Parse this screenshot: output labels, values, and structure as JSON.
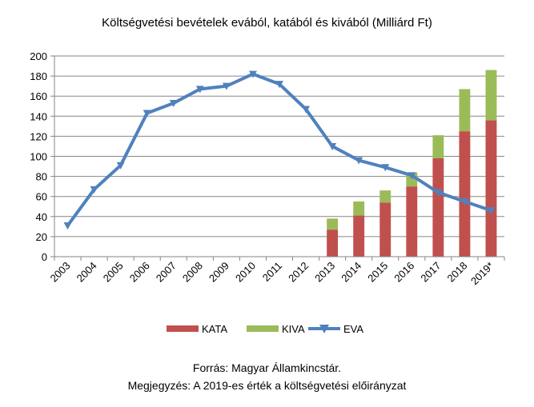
{
  "chart_data": {
    "type": "bar",
    "title": "Költségvetési bevételek evából, katából és kivából (Milliárd Ft)",
    "categories": [
      "2003",
      "2004",
      "2005",
      "2006",
      "2007",
      "2008",
      "2009",
      "2010",
      "2011",
      "2012",
      "2013",
      "2014",
      "2015",
      "2016",
      "2017",
      "2018",
      "2019*"
    ],
    "ylim": [
      0,
      200
    ],
    "yticks": [
      0,
      20,
      40,
      60,
      80,
      100,
      120,
      140,
      160,
      180,
      200
    ],
    "series": [
      {
        "name": "KATA",
        "kind": "stacked-bar",
        "color": "#c0504d",
        "values": [
          null,
          null,
          null,
          null,
          null,
          null,
          null,
          null,
          null,
          null,
          27,
          41,
          54,
          70,
          98,
          125,
          136
        ]
      },
      {
        "name": "KIVA",
        "kind": "stacked-bar",
        "color": "#9bbb59",
        "values": [
          null,
          null,
          null,
          null,
          null,
          null,
          null,
          null,
          null,
          null,
          11,
          14,
          12,
          14,
          23,
          42,
          50
        ]
      },
      {
        "name": "EVA",
        "kind": "line",
        "color": "#4f81bd",
        "values": [
          31,
          67,
          91,
          143,
          153,
          167,
          170,
          182,
          172,
          147,
          110,
          96,
          89,
          81,
          64,
          55,
          46
        ]
      }
    ],
    "grid": true,
    "legend_position": "bottom"
  },
  "footer": {
    "source": "Forrás: Magyar Államkincstár.",
    "note": "Megjegyzés: A 2019-es érték a költségvetési előirányzat"
  }
}
